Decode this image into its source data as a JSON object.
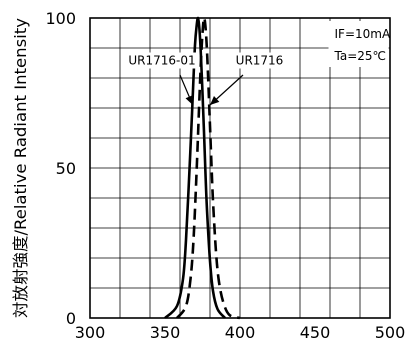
{
  "chart_data": {
    "type": "line",
    "ylabel": "対放射強度/Relative Radiant Intensity",
    "xlim": [
      300,
      500
    ],
    "ylim": [
      0,
      100
    ],
    "x_ticks": [
      300,
      350,
      400,
      450,
      500
    ],
    "y_ticks": [
      0,
      50,
      100
    ],
    "grid": true,
    "conditions": [
      "IF=10mA",
      "Ta=25℃"
    ],
    "series": [
      {
        "name": "UR1716-01",
        "line_style": "solid",
        "x": [
          350,
          358,
          362,
          364,
          366,
          368,
          369,
          370,
          371,
          372,
          373,
          374,
          375,
          376,
          377,
          378,
          380,
          382,
          385,
          390
        ],
        "y": [
          0,
          4,
          13,
          26,
          46,
          68,
          80,
          91,
          97,
          100,
          96,
          87,
          75,
          62,
          48,
          36,
          19,
          9,
          3,
          0
        ]
      },
      {
        "name": "UR1716",
        "line_style": "dashed",
        "x": [
          358,
          364,
          367,
          369,
          371,
          373,
          374,
          375,
          376,
          377,
          378,
          379,
          380,
          381,
          382,
          384,
          386,
          389,
          393,
          400
        ],
        "y": [
          0,
          4,
          13,
          26,
          48,
          74,
          86,
          95,
          100,
          97,
          89,
          77,
          64,
          51,
          39,
          22,
          12,
          5,
          1,
          0
        ]
      }
    ],
    "annotations": [
      {
        "text": "UR1716-01",
        "series": 0
      },
      {
        "text": "UR1716",
        "series": 1
      }
    ]
  }
}
